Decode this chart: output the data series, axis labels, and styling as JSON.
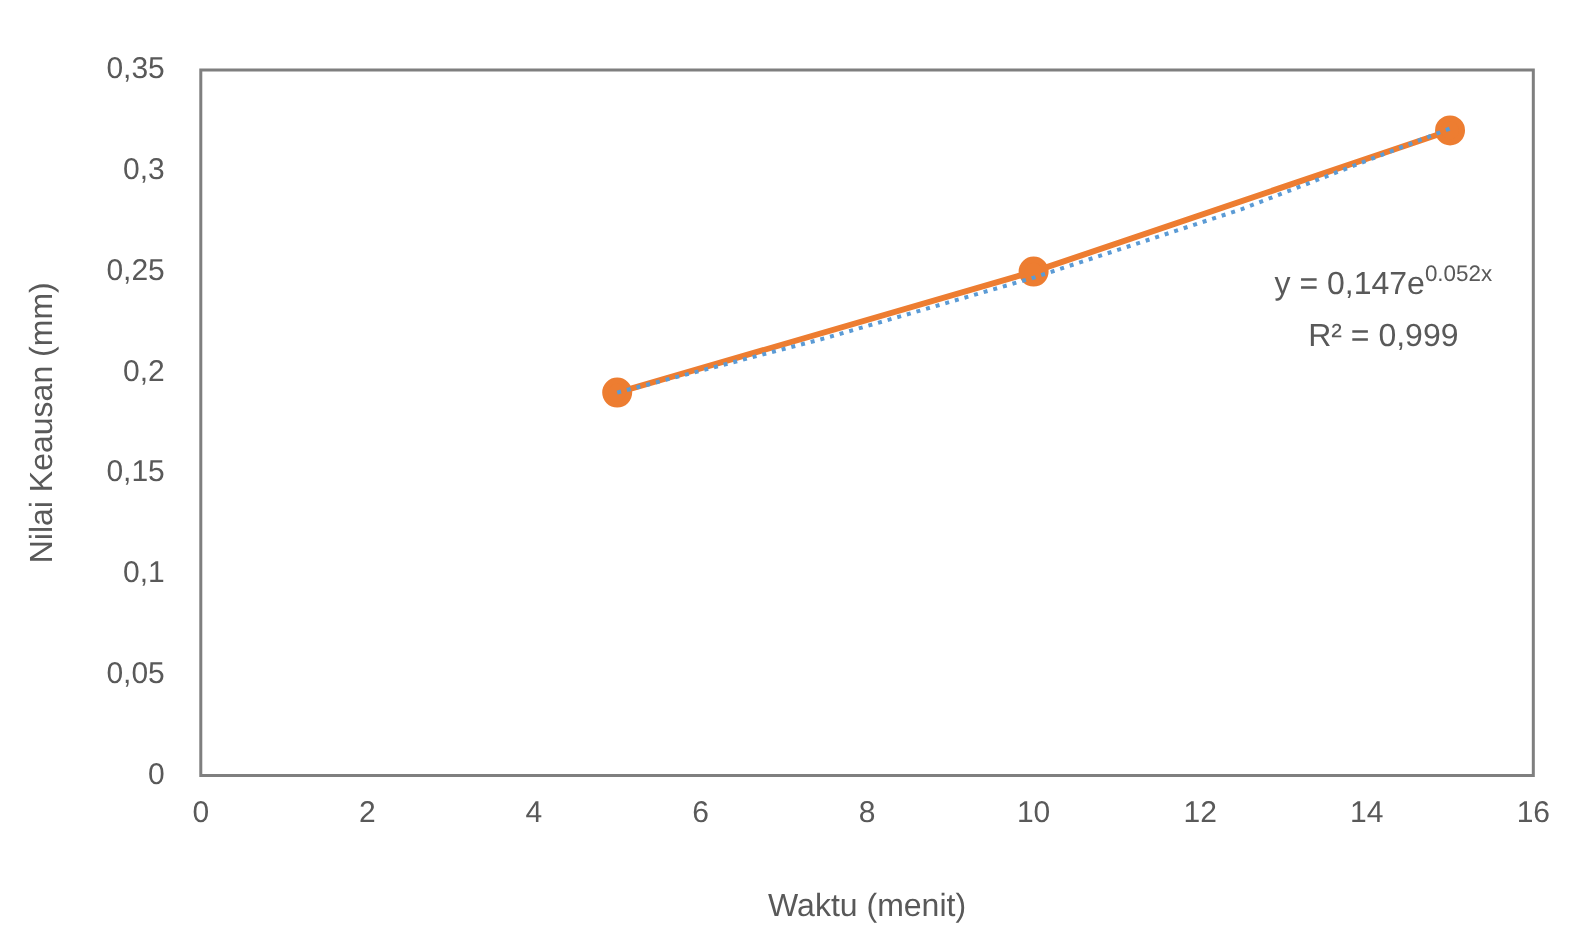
{
  "chart_data": {
    "type": "scatter",
    "xlabel": "Waktu (menit)",
    "ylabel": "Nilai Keausan (mm)",
    "xlim": [
      0,
      16
    ],
    "xticks": [
      0,
      2,
      4,
      6,
      8,
      10,
      12,
      14,
      16
    ],
    "ylim": [
      0,
      0.35
    ],
    "yticks": [
      {
        "value": 0,
        "label": "0"
      },
      {
        "value": 0.05,
        "label": "0,05"
      },
      {
        "value": 0.1,
        "label": "0,1"
      },
      {
        "value": 0.15,
        "label": "0,15"
      },
      {
        "value": 0.2,
        "label": "0,2"
      },
      {
        "value": 0.25,
        "label": "0,25"
      },
      {
        "value": 0.3,
        "label": "0,3"
      },
      {
        "value": 0.35,
        "label": "0,35"
      }
    ],
    "grid": false,
    "legend": false,
    "series": [
      {
        "type": "line",
        "color": "#ed7d31",
        "x": [
          5,
          10,
          15
        ],
        "values": [
          0.19,
          0.25,
          0.32
        ],
        "marker": "circle",
        "line_style": "solid"
      },
      {
        "type": "line",
        "color": "#5b9bd5",
        "x": [
          5,
          7.5,
          10,
          12.5,
          15
        ],
        "values": [
          0.19,
          0.217,
          0.247,
          0.281,
          0.321
        ],
        "marker": "none",
        "line_style": "dotted"
      }
    ],
    "annotations": [
      "y = 0,147e$^{0.052x}$",
      "R² = 0,999"
    ]
  }
}
